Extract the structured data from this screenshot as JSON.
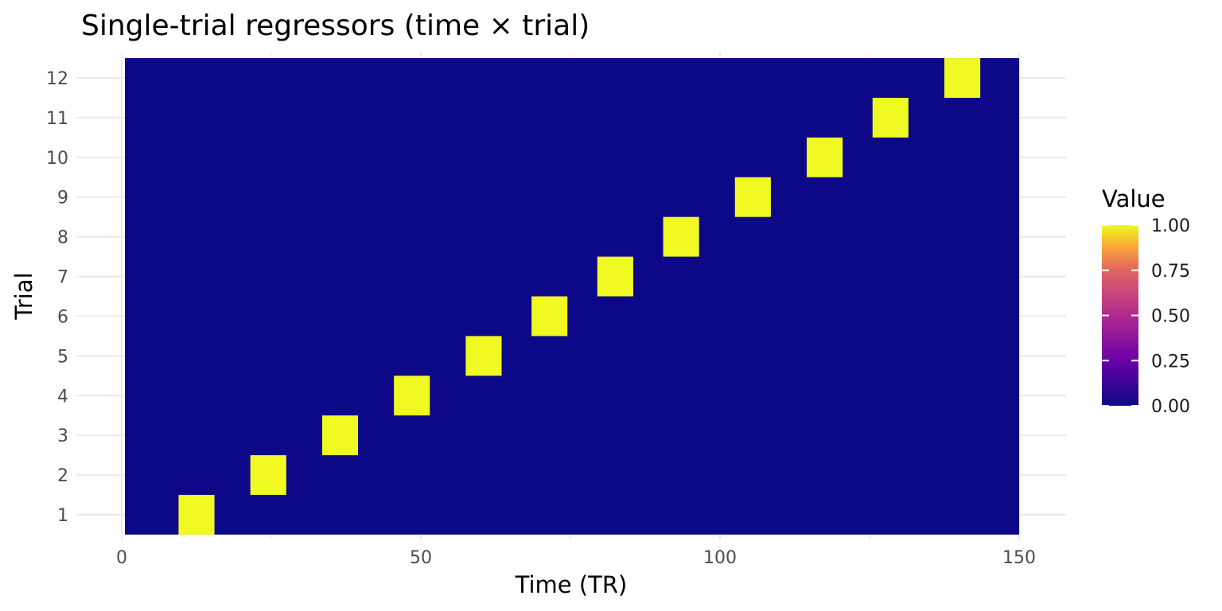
{
  "chart_data": {
    "type": "heatmap",
    "title": "Single-trial regressors (time × trial)",
    "xlabel": "Time (TR)",
    "ylabel": "Trial",
    "xlim": [
      0,
      150
    ],
    "ylim": [
      0.5,
      12.5
    ],
    "x_data_range": [
      0,
      150
    ],
    "x_ticks": [
      0,
      50,
      100,
      150
    ],
    "y_ticks": [
      1,
      2,
      3,
      4,
      5,
      6,
      7,
      8,
      9,
      10,
      11,
      12
    ],
    "background_value": 0,
    "trials": [
      {
        "trial": 1,
        "x_start": 9.5,
        "x_end": 15.5,
        "value": 1
      },
      {
        "trial": 2,
        "x_start": 21.5,
        "x_end": 27.5,
        "value": 1
      },
      {
        "trial": 3,
        "x_start": 33.5,
        "x_end": 39.5,
        "value": 1
      },
      {
        "trial": 4,
        "x_start": 45.5,
        "x_end": 51.5,
        "value": 1
      },
      {
        "trial": 5,
        "x_start": 57.5,
        "x_end": 63.5,
        "value": 1
      },
      {
        "trial": 6,
        "x_start": 68.5,
        "x_end": 74.5,
        "value": 1
      },
      {
        "trial": 7,
        "x_start": 79.5,
        "x_end": 85.5,
        "value": 1
      },
      {
        "trial": 8,
        "x_start": 90.5,
        "x_end": 96.5,
        "value": 1
      },
      {
        "trial": 9,
        "x_start": 102.5,
        "x_end": 108.5,
        "value": 1
      },
      {
        "trial": 10,
        "x_start": 114.5,
        "x_end": 120.5,
        "value": 1
      },
      {
        "trial": 11,
        "x_start": 125.5,
        "x_end": 131.5,
        "value": 1
      },
      {
        "trial": 12,
        "x_start": 137.5,
        "x_end": 143.5,
        "value": 1
      }
    ],
    "colorscale": {
      "name": "plasma",
      "stops": [
        {
          "offset": 0.0,
          "color": "#0d0887"
        },
        {
          "offset": 0.25,
          "color": "#6a00a8"
        },
        {
          "offset": 0.5,
          "color": "#b12a90"
        },
        {
          "offset": 0.75,
          "color": "#e16462"
        },
        {
          "offset": 0.88,
          "color": "#fca636"
        },
        {
          "offset": 1.0,
          "color": "#f0f921"
        }
      ]
    },
    "legend": {
      "title": "Value",
      "placement": "right",
      "ticks": [
        {
          "value": 1.0,
          "label": "1.00"
        },
        {
          "value": 0.75,
          "label": "0.75"
        },
        {
          "value": 0.5,
          "label": "0.50"
        },
        {
          "value": 0.25,
          "label": "0.25"
        },
        {
          "value": 0.0,
          "label": "0.00"
        }
      ]
    },
    "grid": true
  }
}
